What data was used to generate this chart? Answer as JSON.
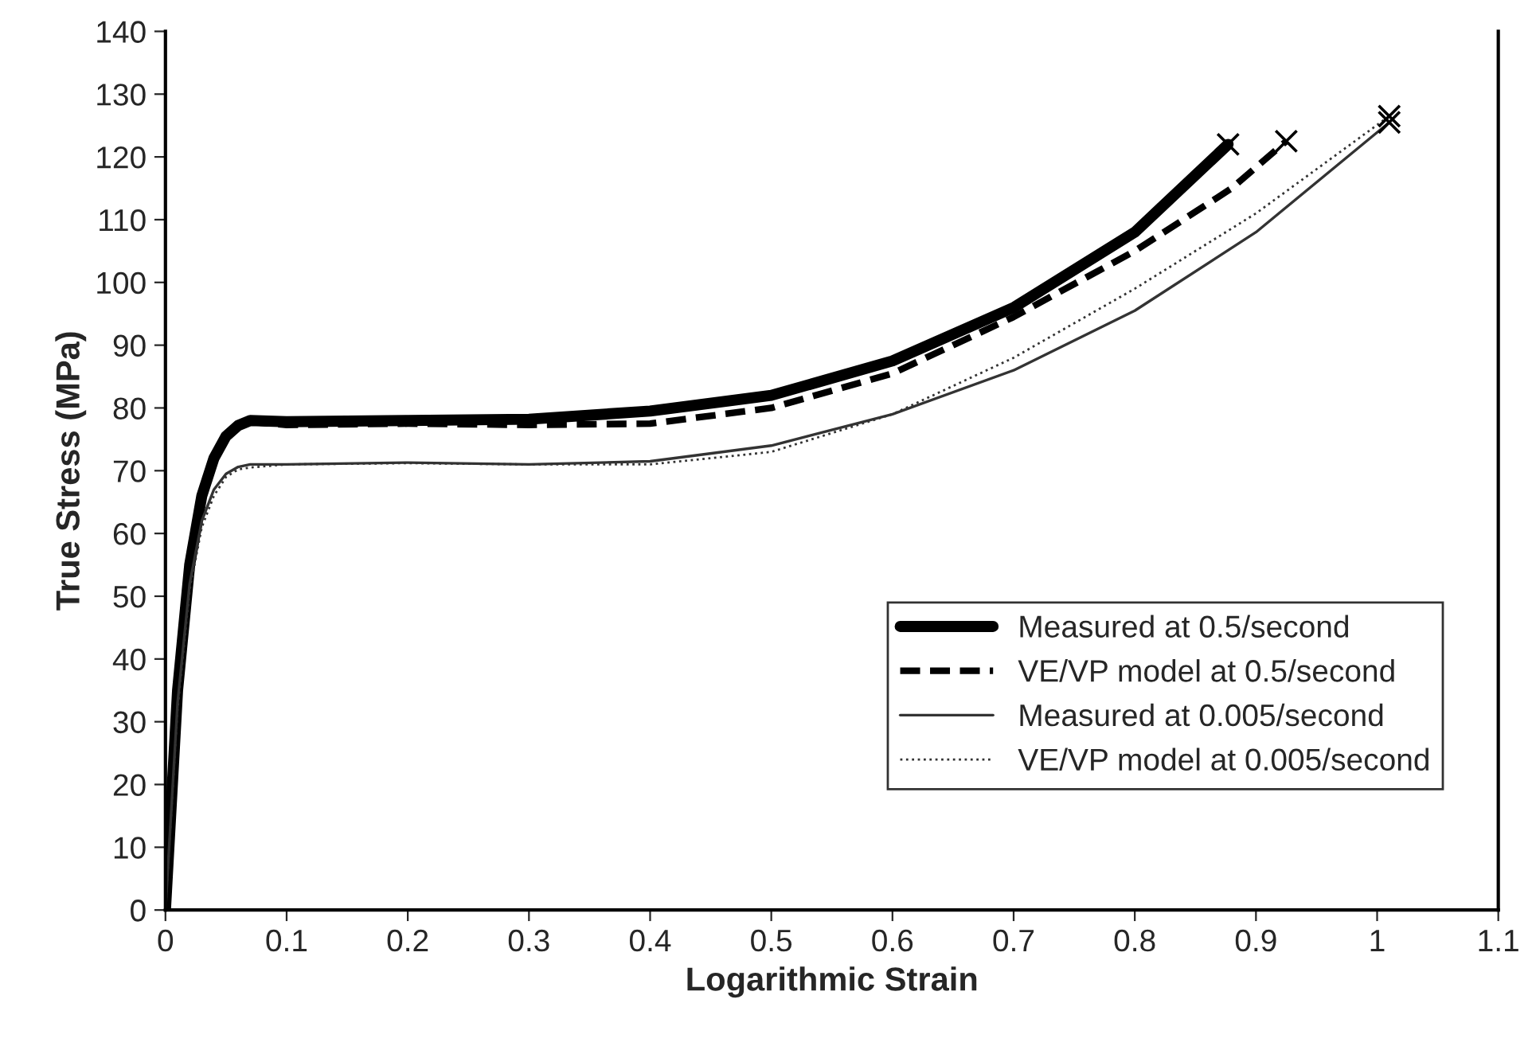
{
  "chart_data": {
    "type": "line",
    "xlabel": "Logarithmic Strain",
    "ylabel": "True Stress (MPa)",
    "xlim": [
      0,
      1.1
    ],
    "xticks": [
      0,
      0.1,
      0.2,
      0.3,
      0.4,
      0.5,
      0.6,
      0.7,
      0.8,
      0.9,
      1,
      1.1
    ],
    "ylim": [
      0,
      140
    ],
    "yticks": [
      0,
      10,
      20,
      30,
      40,
      50,
      60,
      70,
      80,
      90,
      100,
      110,
      120,
      130,
      140
    ],
    "grid": false,
    "legend": "bottom right",
    "series": [
      {
        "name": "Measured at 0.5/second",
        "color": "#000000",
        "line_style": "solid",
        "x": [
          0,
          0.01,
          0.02,
          0.03,
          0.04,
          0.05,
          0.06,
          0.07,
          0.1,
          0.2,
          0.3,
          0.4,
          0.5,
          0.6,
          0.7,
          0.8,
          0.877
        ],
        "values": [
          0,
          35,
          55,
          66,
          72,
          75.5,
          77.2,
          78,
          77.8,
          78,
          78.2,
          79.5,
          82,
          87.5,
          96,
          108,
          122
        ]
      },
      {
        "name": "VE/VP model at 0.5/second",
        "color": "#000000",
        "line_style": "dashed",
        "x": [
          0,
          0.01,
          0.02,
          0.03,
          0.04,
          0.05,
          0.06,
          0.07,
          0.1,
          0.2,
          0.3,
          0.4,
          0.5,
          0.6,
          0.7,
          0.8,
          0.88,
          0.925
        ],
        "values": [
          0,
          35,
          55,
          66,
          72,
          75.5,
          77,
          77.8,
          77.3,
          77.5,
          77.3,
          77.5,
          80,
          85.5,
          94.5,
          105,
          115,
          122.5
        ]
      },
      {
        "name": "Measured at 0.005/second",
        "color": "#333333",
        "line_style": "solid",
        "x": [
          0,
          0.01,
          0.02,
          0.03,
          0.04,
          0.05,
          0.06,
          0.07,
          0.1,
          0.2,
          0.3,
          0.4,
          0.5,
          0.6,
          0.7,
          0.8,
          0.9,
          1.01
        ],
        "values": [
          0,
          33,
          52,
          62,
          67,
          69.5,
          70.6,
          71,
          71,
          71.3,
          71,
          71.5,
          74,
          79,
          86,
          95.5,
          108,
          125.5
        ]
      },
      {
        "name": "VE/VP model at 0.005/second",
        "color": "#333333",
        "line_style": "dotted",
        "x": [
          0,
          0.01,
          0.02,
          0.03,
          0.04,
          0.05,
          0.06,
          0.07,
          0.1,
          0.2,
          0.3,
          0.4,
          0.5,
          0.6,
          0.7,
          0.8,
          0.9,
          1.01
        ],
        "values": [
          0,
          32,
          51,
          61,
          66,
          69,
          70.2,
          70.5,
          71,
          71.2,
          71,
          71,
          73,
          79,
          88,
          99,
          111,
          126.5
        ]
      },
      {
        "type": "scatter",
        "marker": "cross",
        "color": "#000000",
        "x": [
          0.877,
          0.925,
          1.01,
          1.01
        ],
        "values": [
          122,
          122.5,
          125.5,
          126.5
        ]
      }
    ]
  }
}
